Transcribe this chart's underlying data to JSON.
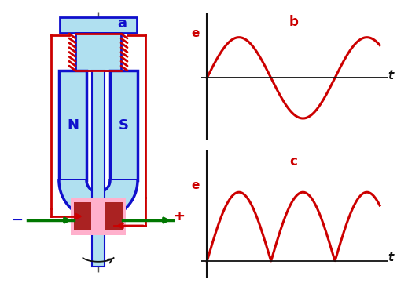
{
  "bg_color": "#ffffff",
  "blue_dark": "#1010cc",
  "blue_light": "#b0e0f0",
  "red_color": "#cc0000",
  "green_color": "#007700",
  "pink_color": "#ffb0cc",
  "black_color": "#111111",
  "gray_dash": "#555555",
  "label_a": "a",
  "label_b": "b",
  "label_c": "c",
  "label_N": "N",
  "label_S": "S",
  "label_minus": "−",
  "label_plus": "+"
}
